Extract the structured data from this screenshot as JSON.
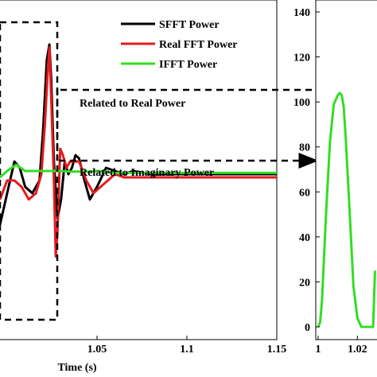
{
  "chart_data": [
    {
      "type": "line",
      "xlabel": "Time (s)",
      "ylabel": "",
      "xlim": [
        0.996,
        1.15
      ],
      "ylim": [
        -22,
        25
      ],
      "x_ticks": [
        "1.05",
        "1.1",
        "1.15"
      ],
      "x_tick_values": [
        1.05,
        1.1,
        1.15
      ],
      "y_ticks": [],
      "legend": {
        "placement": "top-right"
      },
      "series": [
        {
          "name": "SFFT Power",
          "color": "#000000",
          "x": [
            0.996,
            1.0,
            1.004,
            1.007,
            1.01,
            1.014,
            1.018,
            1.02,
            1.022,
            1.0235,
            1.0245,
            1.026,
            1.028,
            1.03,
            1.032,
            1.034,
            1.036,
            1.038,
            1.04,
            1.043,
            1.046,
            1.05,
            1.055,
            1.06,
            1.065,
            1.07,
            1.08,
            1.1,
            1.15
          ],
          "y": [
            -7,
            -2,
            3,
            2,
            -1,
            -2,
            0,
            8,
            19,
            21.5,
            16,
            3,
            -6,
            -3,
            3,
            1,
            2,
            4,
            3.5,
            0,
            -3,
            -1,
            2,
            1.5,
            1,
            1.5,
            1,
            1,
            1
          ]
        },
        {
          "name": "Real FFT Power",
          "color": "#e41a1c",
          "x": [
            0.996,
            1.0,
            1.004,
            1.008,
            1.012,
            1.016,
            1.019,
            1.021,
            1.0225,
            1.0235,
            1.0245,
            1.026,
            1.027,
            1.028,
            1.0295,
            1.031,
            1.033,
            1.035,
            1.037,
            1.04,
            1.044,
            1.048,
            1.052,
            1.056,
            1.06,
            1.065,
            1.07,
            1.08,
            1.1,
            1.15
          ],
          "y": [
            -3,
            0,
            0,
            -1,
            -3,
            -2,
            1,
            9,
            17,
            21,
            13,
            0,
            -12,
            -8,
            5,
            4,
            2,
            3,
            3,
            3,
            0,
            -2,
            -1,
            0,
            1,
            0.5,
            0.5,
            0.5,
            0.5,
            0.5
          ]
        },
        {
          "name": "IFFT Power",
          "color": "#33dd22",
          "x": [
            0.996,
            1.0,
            1.005,
            1.01,
            1.015,
            1.02,
            1.025,
            1.03,
            1.035,
            1.04,
            1.045,
            1.05,
            1.06,
            1.08,
            1.1,
            1.15
          ],
          "y": [
            0.5,
            1.5,
            2.5,
            1.5,
            1.5,
            1.5,
            1.5,
            1.5,
            1.4,
            1.4,
            1.4,
            1.5,
            1.2,
            1.2,
            1.2,
            1.2
          ]
        }
      ]
    },
    {
      "type": "line",
      "xlabel": "",
      "ylabel": "",
      "xlim": [
        1.0,
        1.03
      ],
      "ylim": [
        -5,
        140
      ],
      "x_ticks": [
        "1",
        "1.02"
      ],
      "x_tick_values": [
        1.0,
        1.02
      ],
      "y_ticks": [
        "0",
        "20",
        "40",
        "60",
        "80",
        "100",
        "120",
        "140"
      ],
      "y_tick_values": [
        0,
        20,
        40,
        60,
        80,
        100,
        120,
        140
      ],
      "series": [
        {
          "name": "IFFT Power",
          "color": "#33dd22",
          "x": [
            1.0,
            1.001,
            1.002,
            1.004,
            1.006,
            1.008,
            1.01,
            1.011,
            1.012,
            1.013,
            1.014,
            1.016,
            1.018,
            1.02,
            1.022,
            1.023,
            1.028,
            1.029
          ],
          "y": [
            0,
            2,
            12,
            50,
            82,
            99,
            103,
            104,
            103,
            98,
            85,
            52,
            18,
            4,
            0,
            0,
            0,
            25
          ]
        }
      ]
    }
  ],
  "annotations": {
    "real": "Related to Real Power",
    "imag": "Related to Imaginary Power"
  }
}
